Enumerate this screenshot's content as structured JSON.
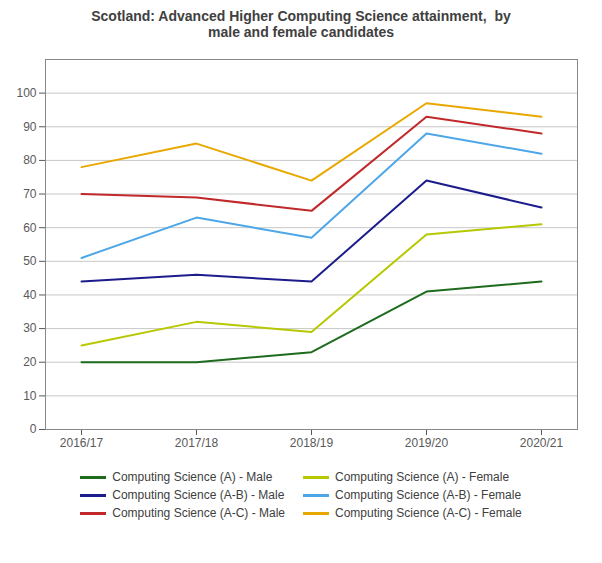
{
  "chart_data": {
    "type": "line",
    "title": "Scotland: Advanced Higher Computing Science attainment,  by\nmale and female candidates",
    "categories": [
      "2016/17",
      "2017/18",
      "2018/19",
      "2019/20",
      "2020/21"
    ],
    "series": [
      {
        "name": "Computing Science (A) - Male",
        "color": "#1e6b1e",
        "values": [
          20,
          20,
          23,
          41,
          44
        ]
      },
      {
        "name": "Computing Science (A) - Female",
        "color": "#b5c800",
        "values": [
          25,
          32,
          29,
          58,
          61
        ]
      },
      {
        "name": "Computing Science (A-B) - Male",
        "color": "#1c1c8c",
        "values": [
          44,
          46,
          44,
          74,
          66
        ]
      },
      {
        "name": "Computing Science (A-B) - Female",
        "color": "#4da6e8",
        "values": [
          51,
          63,
          57,
          88,
          82
        ]
      },
      {
        "name": "Computing Science (A-C) - Male",
        "color": "#c0282a",
        "values": [
          70,
          69,
          65,
          93,
          88
        ]
      },
      {
        "name": "Computing Science (A-C) - Female",
        "color": "#e8a800",
        "values": [
          78,
          85,
          74,
          97,
          93
        ]
      }
    ],
    "ylim": [
      0,
      110
    ],
    "yticks": [
      0,
      10,
      20,
      30,
      40,
      50,
      60,
      70,
      80,
      90,
      100
    ],
    "grid": true,
    "legend": "bottom"
  }
}
